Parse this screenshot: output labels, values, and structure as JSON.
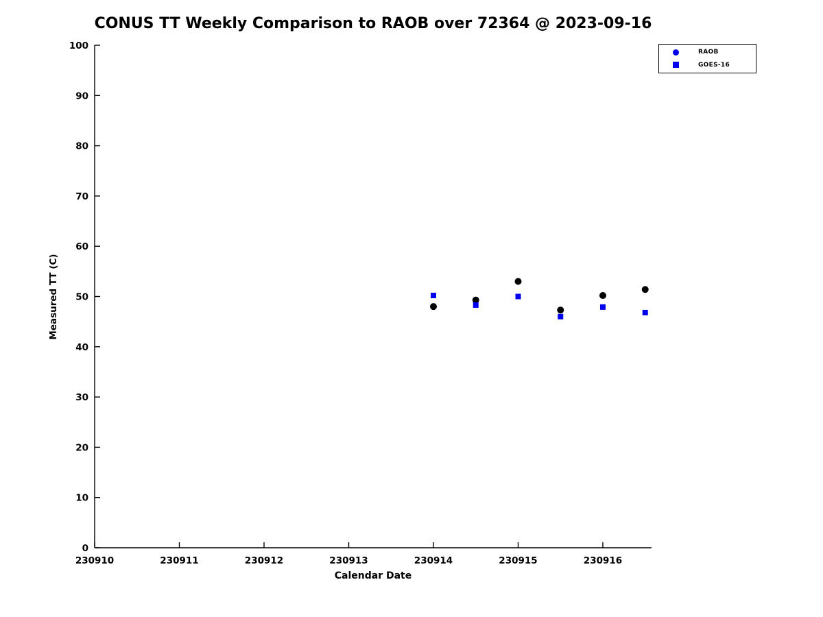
{
  "title": "CONUS TT Weekly Comparison to RAOB over 72364 @ 2023-09-16",
  "axes": {
    "xlabel": "Calendar Date",
    "ylabel": "Measured TT (C)"
  },
  "chart_data": {
    "type": "scatter",
    "title": "CONUS TT Weekly Comparison to RAOB over 72364 @ 2023-09-16",
    "xlabel": "Calendar Date",
    "ylabel": "Measured TT (C)",
    "xlim": [
      230910,
      230916.575
    ],
    "ylim": [
      0,
      100
    ],
    "x_ticks": [
      230910,
      230911,
      230912,
      230913,
      230914,
      230915,
      230916
    ],
    "y_ticks": [
      0,
      10,
      20,
      30,
      40,
      50,
      60,
      70,
      80,
      90,
      100
    ],
    "grid": false,
    "legend_position": "top-right-outside",
    "series": [
      {
        "name": "RAOB",
        "marker": "circle",
        "color": "#000000",
        "legend_color": "#0000ee",
        "points": [
          {
            "x": 230914.0,
            "y": 48.0
          },
          {
            "x": 230914.5,
            "y": 49.3
          },
          {
            "x": 230915.0,
            "y": 53.0
          },
          {
            "x": 230915.5,
            "y": 47.3
          },
          {
            "x": 230916.0,
            "y": 50.2
          },
          {
            "x": 230916.5,
            "y": 51.4
          }
        ]
      },
      {
        "name": "GOES-16",
        "marker": "square",
        "color": "#0000ee",
        "legend_color": "#0000ee",
        "points": [
          {
            "x": 230914.0,
            "y": 50.2
          },
          {
            "x": 230914.5,
            "y": 48.3
          },
          {
            "x": 230915.0,
            "y": 50.0
          },
          {
            "x": 230915.5,
            "y": 46.0
          },
          {
            "x": 230916.0,
            "y": 47.9
          },
          {
            "x": 230916.5,
            "y": 46.8
          }
        ]
      }
    ]
  }
}
